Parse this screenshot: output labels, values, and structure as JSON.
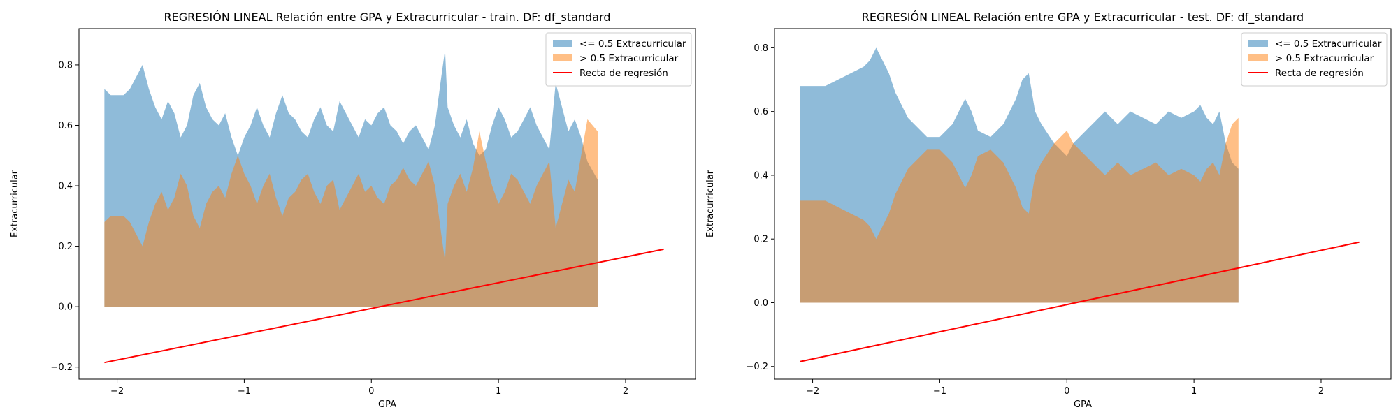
{
  "chart_data": [
    {
      "type": "area",
      "title": "REGRESIÓN LINEAL Relación entre GPA y Extracurricular - train. DF: df_standard",
      "xlabel": "GPA",
      "ylabel": "Extracurricular",
      "xlim": [
        -2.3,
        2.55
      ],
      "ylim": [
        -0.24,
        0.92
      ],
      "xticks": [
        -2,
        -1,
        0,
        1,
        2
      ],
      "xtick_labels": [
        "−2",
        "−1",
        "0",
        "1",
        "2"
      ],
      "yticks": [
        -0.2,
        0.0,
        0.2,
        0.4,
        0.6,
        0.8
      ],
      "ytick_labels": [
        "−0.2",
        "0.0",
        "0.2",
        "0.4",
        "0.6",
        "0.8"
      ],
      "grid": false,
      "legend_position": "top-right",
      "series": [
        {
          "name": "<= 0.5 Extracurricular",
          "color": "#1f77b4",
          "opacity": 0.5,
          "x": [
            -2.1,
            -2.05,
            -2.0,
            -1.95,
            -1.9,
            -1.85,
            -1.8,
            -1.75,
            -1.7,
            -1.65,
            -1.6,
            -1.55,
            -1.5,
            -1.45,
            -1.4,
            -1.35,
            -1.3,
            -1.25,
            -1.2,
            -1.15,
            -1.1,
            -1.05,
            -1.0,
            -0.95,
            -0.9,
            -0.85,
            -0.8,
            -0.75,
            -0.7,
            -0.65,
            -0.6,
            -0.55,
            -0.5,
            -0.45,
            -0.4,
            -0.35,
            -0.3,
            -0.25,
            -0.2,
            -0.15,
            -0.1,
            -0.05,
            0.0,
            0.05,
            0.1,
            0.15,
            0.2,
            0.25,
            0.3,
            0.35,
            0.4,
            0.45,
            0.5,
            0.55,
            0.58,
            0.6,
            0.65,
            0.7,
            0.75,
            0.8,
            0.85,
            0.9,
            0.95,
            1.0,
            1.05,
            1.1,
            1.15,
            1.2,
            1.25,
            1.3,
            1.35,
            1.4,
            1.45,
            1.5,
            1.55,
            1.6,
            1.65,
            1.7,
            1.78
          ],
          "values": [
            0.72,
            0.7,
            0.7,
            0.7,
            0.72,
            0.76,
            0.8,
            0.72,
            0.66,
            0.62,
            0.68,
            0.64,
            0.56,
            0.6,
            0.7,
            0.74,
            0.66,
            0.62,
            0.6,
            0.64,
            0.56,
            0.5,
            0.56,
            0.6,
            0.66,
            0.6,
            0.56,
            0.64,
            0.7,
            0.64,
            0.62,
            0.58,
            0.56,
            0.62,
            0.66,
            0.6,
            0.58,
            0.68,
            0.64,
            0.6,
            0.56,
            0.62,
            0.6,
            0.64,
            0.66,
            0.6,
            0.58,
            0.54,
            0.58,
            0.6,
            0.56,
            0.52,
            0.6,
            0.76,
            0.85,
            0.66,
            0.6,
            0.56,
            0.62,
            0.54,
            0.5,
            0.52,
            0.6,
            0.66,
            0.62,
            0.56,
            0.58,
            0.62,
            0.66,
            0.6,
            0.56,
            0.52,
            0.74,
            0.66,
            0.58,
            0.62,
            0.56,
            0.48,
            0.42
          ]
        },
        {
          "name": "> 0.5 Extracurricular",
          "color": "#ff7f0e",
          "opacity": 0.5,
          "x": [
            -2.1,
            -2.05,
            -2.0,
            -1.95,
            -1.9,
            -1.85,
            -1.8,
            -1.75,
            -1.7,
            -1.65,
            -1.6,
            -1.55,
            -1.5,
            -1.45,
            -1.4,
            -1.35,
            -1.3,
            -1.25,
            -1.2,
            -1.15,
            -1.1,
            -1.05,
            -1.0,
            -0.95,
            -0.9,
            -0.85,
            -0.8,
            -0.75,
            -0.7,
            -0.65,
            -0.6,
            -0.55,
            -0.5,
            -0.45,
            -0.4,
            -0.35,
            -0.3,
            -0.25,
            -0.2,
            -0.15,
            -0.1,
            -0.05,
            0.0,
            0.05,
            0.1,
            0.15,
            0.2,
            0.25,
            0.3,
            0.35,
            0.4,
            0.45,
            0.5,
            0.55,
            0.58,
            0.6,
            0.65,
            0.7,
            0.75,
            0.8,
            0.85,
            0.9,
            0.95,
            1.0,
            1.05,
            1.1,
            1.15,
            1.2,
            1.25,
            1.3,
            1.35,
            1.4,
            1.45,
            1.5,
            1.55,
            1.6,
            1.65,
            1.7,
            1.78
          ],
          "values": [
            0.28,
            0.3,
            0.3,
            0.3,
            0.28,
            0.24,
            0.2,
            0.28,
            0.34,
            0.38,
            0.32,
            0.36,
            0.44,
            0.4,
            0.3,
            0.26,
            0.34,
            0.38,
            0.4,
            0.36,
            0.44,
            0.5,
            0.44,
            0.4,
            0.34,
            0.4,
            0.44,
            0.36,
            0.3,
            0.36,
            0.38,
            0.42,
            0.44,
            0.38,
            0.34,
            0.4,
            0.42,
            0.32,
            0.36,
            0.4,
            0.44,
            0.38,
            0.4,
            0.36,
            0.34,
            0.4,
            0.42,
            0.46,
            0.42,
            0.4,
            0.44,
            0.48,
            0.4,
            0.24,
            0.15,
            0.34,
            0.4,
            0.44,
            0.38,
            0.46,
            0.58,
            0.48,
            0.4,
            0.34,
            0.38,
            0.44,
            0.42,
            0.38,
            0.34,
            0.4,
            0.44,
            0.48,
            0.26,
            0.34,
            0.42,
            0.38,
            0.5,
            0.62,
            0.58
          ]
        },
        {
          "name": "Recta de regresión",
          "type": "line",
          "color": "#ff0000",
          "x": [
            -2.1,
            2.3
          ],
          "values": [
            -0.185,
            0.19
          ]
        }
      ]
    },
    {
      "type": "area",
      "title": "REGRESIÓN LINEAL Relación entre GPA y Extracurricular - test. DF: df_standard",
      "xlabel": "GPA",
      "ylabel": "Extracurricular",
      "xlim": [
        -2.3,
        2.55
      ],
      "ylim": [
        -0.24,
        0.86
      ],
      "xticks": [
        -2,
        -1,
        0,
        1,
        2
      ],
      "xtick_labels": [
        "−2",
        "−1",
        "0",
        "1",
        "2"
      ],
      "yticks": [
        -0.2,
        0.0,
        0.2,
        0.4,
        0.6,
        0.8
      ],
      "ytick_labels": [
        "−0.2",
        "0.0",
        "0.2",
        "0.4",
        "0.6",
        "0.8"
      ],
      "grid": false,
      "legend_position": "top-right",
      "series": [
        {
          "name": "<= 0.5 Extracurricular",
          "color": "#1f77b4",
          "opacity": 0.5,
          "x": [
            -2.1,
            -2.0,
            -1.9,
            -1.8,
            -1.7,
            -1.6,
            -1.55,
            -1.5,
            -1.45,
            -1.4,
            -1.35,
            -1.3,
            -1.25,
            -1.2,
            -1.1,
            -1.0,
            -0.9,
            -0.8,
            -0.75,
            -0.7,
            -0.6,
            -0.5,
            -0.4,
            -0.35,
            -0.3,
            -0.25,
            -0.2,
            -0.1,
            0.0,
            0.05,
            0.1,
            0.2,
            0.3,
            0.4,
            0.5,
            0.6,
            0.7,
            0.8,
            0.9,
            1.0,
            1.05,
            1.1,
            1.15,
            1.2,
            1.25,
            1.3,
            1.35
          ],
          "values": [
            0.68,
            0.68,
            0.68,
            0.7,
            0.72,
            0.74,
            0.76,
            0.8,
            0.76,
            0.72,
            0.66,
            0.62,
            0.58,
            0.56,
            0.52,
            0.52,
            0.56,
            0.64,
            0.6,
            0.54,
            0.52,
            0.56,
            0.64,
            0.7,
            0.72,
            0.6,
            0.56,
            0.5,
            0.46,
            0.5,
            0.52,
            0.56,
            0.6,
            0.56,
            0.6,
            0.58,
            0.56,
            0.6,
            0.58,
            0.6,
            0.62,
            0.58,
            0.56,
            0.6,
            0.5,
            0.44,
            0.42
          ]
        },
        {
          "name": "> 0.5 Extracurricular",
          "color": "#ff7f0e",
          "opacity": 0.5,
          "x": [
            -2.1,
            -2.0,
            -1.9,
            -1.8,
            -1.7,
            -1.6,
            -1.55,
            -1.5,
            -1.45,
            -1.4,
            -1.35,
            -1.3,
            -1.25,
            -1.2,
            -1.1,
            -1.0,
            -0.9,
            -0.8,
            -0.75,
            -0.7,
            -0.6,
            -0.5,
            -0.4,
            -0.35,
            -0.3,
            -0.25,
            -0.2,
            -0.1,
            0.0,
            0.05,
            0.1,
            0.2,
            0.3,
            0.4,
            0.5,
            0.6,
            0.7,
            0.8,
            0.9,
            1.0,
            1.05,
            1.1,
            1.15,
            1.2,
            1.25,
            1.3,
            1.35
          ],
          "values": [
            0.32,
            0.32,
            0.32,
            0.3,
            0.28,
            0.26,
            0.24,
            0.2,
            0.24,
            0.28,
            0.34,
            0.38,
            0.42,
            0.44,
            0.48,
            0.48,
            0.44,
            0.36,
            0.4,
            0.46,
            0.48,
            0.44,
            0.36,
            0.3,
            0.28,
            0.4,
            0.44,
            0.5,
            0.54,
            0.5,
            0.48,
            0.44,
            0.4,
            0.44,
            0.4,
            0.42,
            0.44,
            0.4,
            0.42,
            0.4,
            0.38,
            0.42,
            0.44,
            0.4,
            0.5,
            0.56,
            0.58
          ]
        },
        {
          "name": "Recta de regresión",
          "type": "line",
          "color": "#ff0000",
          "x": [
            -2.1,
            2.3
          ],
          "values": [
            -0.185,
            0.19
          ]
        }
      ]
    }
  ]
}
